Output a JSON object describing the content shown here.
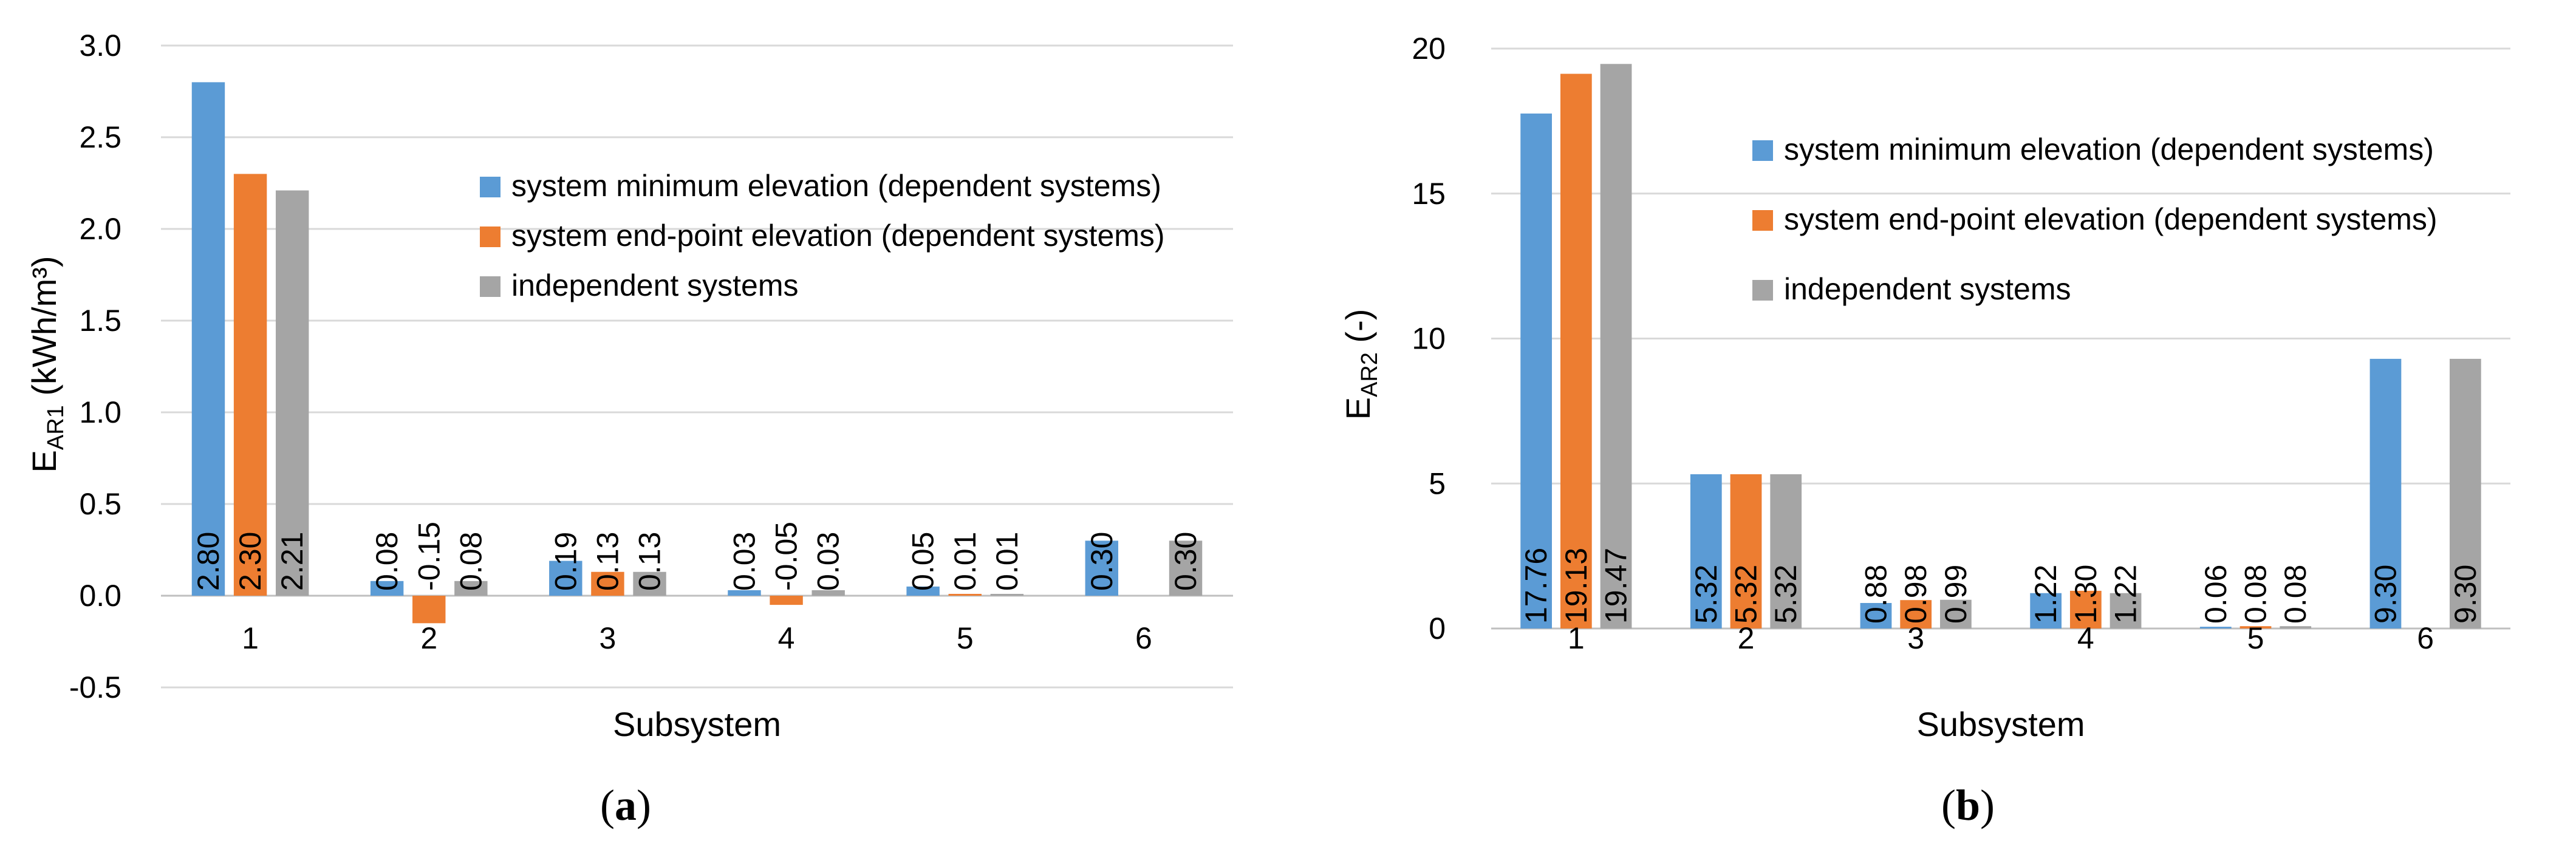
{
  "colors": {
    "min_elev": "#5B9BD5",
    "end_elev": "#ED7D31",
    "indep": "#A5A5A5",
    "grid": "#D9D9D9",
    "axis": "#595959",
    "label": "#000000"
  },
  "chart_data": [
    {
      "type": "bar",
      "panel": "a",
      "panel_label": "a",
      "xlabel": "Subsystem",
      "ylabel_main": "E",
      "ylabel_sub": "AR1",
      "ylabel_unit": " (kWh/m³)",
      "ylim": [
        -0.5,
        3.0
      ],
      "yticks": [
        -0.5,
        0.0,
        0.5,
        1.0,
        1.5,
        2.0,
        2.5,
        3.0
      ],
      "ytick_labels": [
        "-0.5",
        "0.0",
        "0.5",
        "1.0",
        "1.5",
        "2.0",
        "2.5",
        "3.0"
      ],
      "grid": true,
      "legend_position": "top-right",
      "categories": [
        "1",
        "2",
        "3",
        "4",
        "5",
        "6"
      ],
      "series": [
        {
          "name": "system minimum elevation (dependent systems)",
          "color_key": "min_elev",
          "values": [
            2.8,
            0.08,
            0.19,
            0.03,
            0.05,
            0.3
          ],
          "labels": [
            "2.80",
            "0.08",
            "0.19",
            "0.03",
            "0.05",
            "0.30"
          ]
        },
        {
          "name": "system end-point elevation (dependent systems)",
          "color_key": "end_elev",
          "values": [
            2.3,
            -0.15,
            0.13,
            -0.05,
            0.01,
            null
          ],
          "labels": [
            "2.30",
            "-0.15",
            "0.13",
            "-0.05",
            "0.01",
            null
          ]
        },
        {
          "name": "independent systems",
          "color_key": "indep",
          "values": [
            2.21,
            0.08,
            0.13,
            0.03,
            0.01,
            0.3
          ],
          "labels": [
            "2.21",
            "0.08",
            "0.13",
            "0.03",
            "0.01",
            "0.30"
          ]
        }
      ]
    },
    {
      "type": "bar",
      "panel": "b",
      "panel_label": "b",
      "xlabel": "Subsystem",
      "ylabel_main": "E",
      "ylabel_sub": "AR2",
      "ylabel_unit": " (-)",
      "ylim": [
        0,
        20
      ],
      "yticks": [
        0,
        5,
        10,
        15,
        20
      ],
      "ytick_labels": [
        "0",
        "5",
        "10",
        "15",
        "20"
      ],
      "grid": true,
      "legend_position": "top-right",
      "categories": [
        "1",
        "2",
        "3",
        "4",
        "5",
        "6"
      ],
      "series": [
        {
          "name": "system minimum elevation (dependent systems)",
          "color_key": "min_elev",
          "values": [
            17.76,
            5.32,
            0.88,
            1.22,
            0.06,
            9.3
          ],
          "labels": [
            "17.76",
            "5.32",
            "0.88",
            "1.22",
            "0.06",
            "9.30"
          ]
        },
        {
          "name": "system end-point elevation (dependent systems)",
          "color_key": "end_elev",
          "values": [
            19.13,
            5.32,
            0.98,
            1.3,
            0.08,
            null
          ],
          "labels": [
            "19.13",
            "5.32",
            "0.98",
            "1.30",
            "0.08",
            null
          ]
        },
        {
          "name": "independent systems",
          "color_key": "indep",
          "values": [
            19.47,
            5.32,
            0.99,
            1.22,
            0.08,
            9.3
          ],
          "labels": [
            "19.47",
            "5.32",
            "0.99",
            "1.22",
            "0.08",
            "9.30"
          ]
        }
      ]
    }
  ]
}
